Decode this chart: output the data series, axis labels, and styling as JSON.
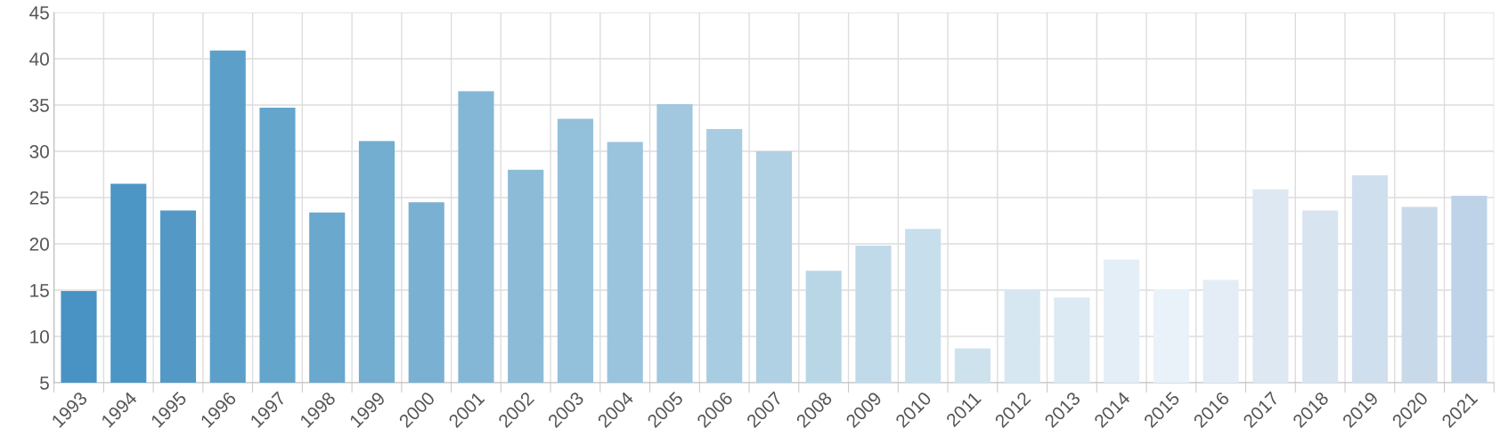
{
  "chart_data": {
    "type": "bar",
    "categories": [
      "1993",
      "1994",
      "1995",
      "1996",
      "1997",
      "1998",
      "1999",
      "2000",
      "2001",
      "2002",
      "2003",
      "2004",
      "2005",
      "2006",
      "2007",
      "2008",
      "2009",
      "2010",
      "2011",
      "2012",
      "2013",
      "2014",
      "2015",
      "2016",
      "2017",
      "2018",
      "2019",
      "2020",
      "2021"
    ],
    "values": [
      14.9,
      26.5,
      23.6,
      40.9,
      34.7,
      23.4,
      31.1,
      24.5,
      36.5,
      28.0,
      33.5,
      31.0,
      35.1,
      32.4,
      30.0,
      17.1,
      19.8,
      21.6,
      8.7,
      15.1,
      14.2,
      18.3,
      15.1,
      16.1,
      25.9,
      23.6,
      27.4,
      24.0,
      25.2
    ],
    "colors": [
      "#4893c3",
      "#4b96c4",
      "#5499c5",
      "#5ca0ca",
      "#64a5cc",
      "#6aa8ce",
      "#73add0",
      "#7ab1d2",
      "#84b7d6",
      "#8cbbd8",
      "#93c0da",
      "#9ac4dd",
      "#a1c8df",
      "#a8cce1",
      "#b0d0e4",
      "#b9d6e7",
      "#c0dae9",
      "#c7deec",
      "#cee2ee",
      "#d6e7f1",
      "#dbeaf3",
      "#e3eef6",
      "#e9f2f9",
      "#e4edf6",
      "#dde8f2",
      "#d8e4f0",
      "#d0dfed",
      "#c8d9ea",
      "#bfd3e8"
    ],
    "ylim": [
      5,
      45
    ],
    "yticks": [
      5,
      10,
      15,
      20,
      25,
      30,
      35,
      40,
      45
    ],
    "grid": true
  }
}
